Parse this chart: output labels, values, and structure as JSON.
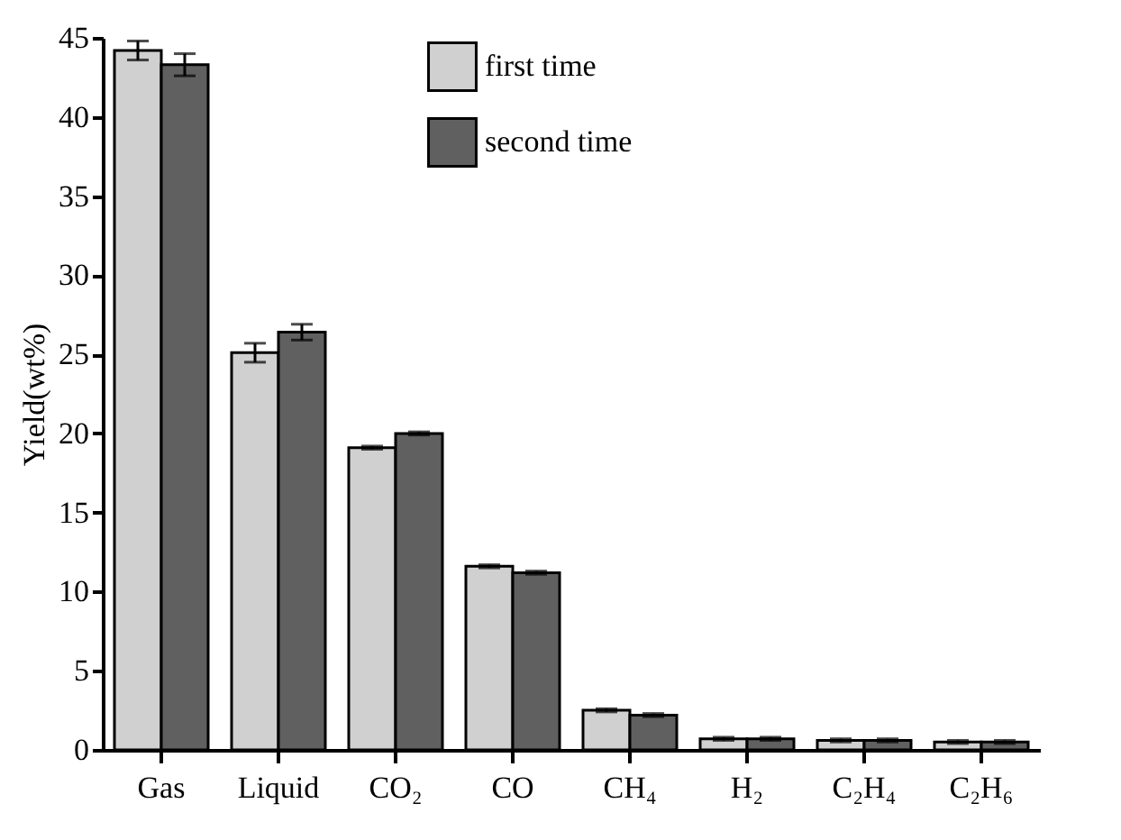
{
  "chart_data": {
    "type": "bar",
    "ylabel": "Yield(wt%)",
    "categories": [
      "Gas",
      "Liquid",
      "CO₂",
      "CO",
      "CH₄",
      "H₂",
      "C₂H₄",
      "C₂H₆"
    ],
    "series": [
      {
        "name": "first time",
        "color": "#d0d0d0",
        "values": [
          44.2,
          25.1,
          19.1,
          11.6,
          2.5,
          0.7,
          0.6,
          0.5
        ],
        "errors": [
          0.6,
          0.6,
          0.1,
          0.1,
          0.1,
          0.1,
          0.1,
          0.1
        ]
      },
      {
        "name": "second time",
        "color": "#606060",
        "values": [
          43.3,
          26.4,
          20.0,
          11.2,
          2.2,
          0.7,
          0.6,
          0.5
        ],
        "errors": [
          0.7,
          0.5,
          0.1,
          0.1,
          0.1,
          0.1,
          0.1,
          0.1
        ]
      }
    ],
    "ylim": [
      0,
      45
    ],
    "yticks": [
      0,
      5,
      10,
      15,
      20,
      25,
      30,
      35,
      40,
      45
    ],
    "grid": false,
    "legend": "top"
  }
}
